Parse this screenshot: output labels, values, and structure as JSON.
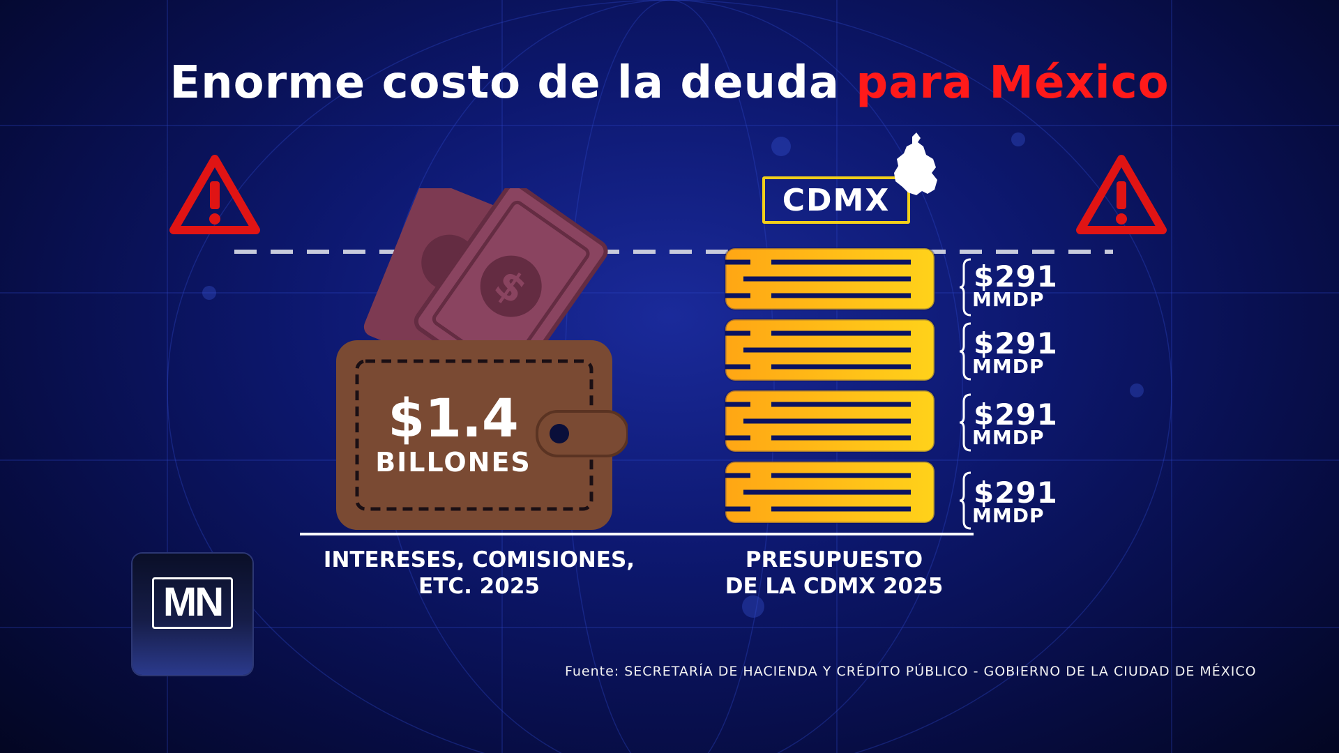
{
  "title": {
    "main": "Enorme costo de la deuda",
    "highlight": "para México"
  },
  "colors": {
    "highlight_red": "#ff1a1a",
    "warning_red": "#e01414",
    "wallet_brown": "#7a4a33",
    "bill_maroon": "#7d3a52",
    "coin_orange": "#ffa614",
    "coin_yellow": "#ffd21a",
    "frame_yellow": "#f2cf1a"
  },
  "icons": {
    "warning": "warning-triangle-icon",
    "map": "cdmx-map-icon",
    "wallet": "wallet-icon",
    "coins": "coin-stack-icon"
  },
  "cdmx_tag": "CDMX",
  "debt": {
    "amount": "$1.4",
    "unit": "BILLONES",
    "label_line1": "INTERESES, COMISIONES,",
    "label_line2": "ETC. 2025"
  },
  "budget": {
    "label_line1": "PRESUPUESTO",
    "label_line2": "DE LA CDMX 2025",
    "segments": [
      {
        "value": "$291",
        "unit": "MMDP"
      },
      {
        "value": "$291",
        "unit": "MMDP"
      },
      {
        "value": "$291",
        "unit": "MMDP"
      },
      {
        "value": "$291",
        "unit": "MMDP"
      }
    ]
  },
  "logo": {
    "text": "MN"
  },
  "source": "Fuente: SECRETARÍA DE HACIENDA Y CRÉDITO PÚBLICO - GOBIERNO DE LA CIUDAD DE MÉXICO"
}
